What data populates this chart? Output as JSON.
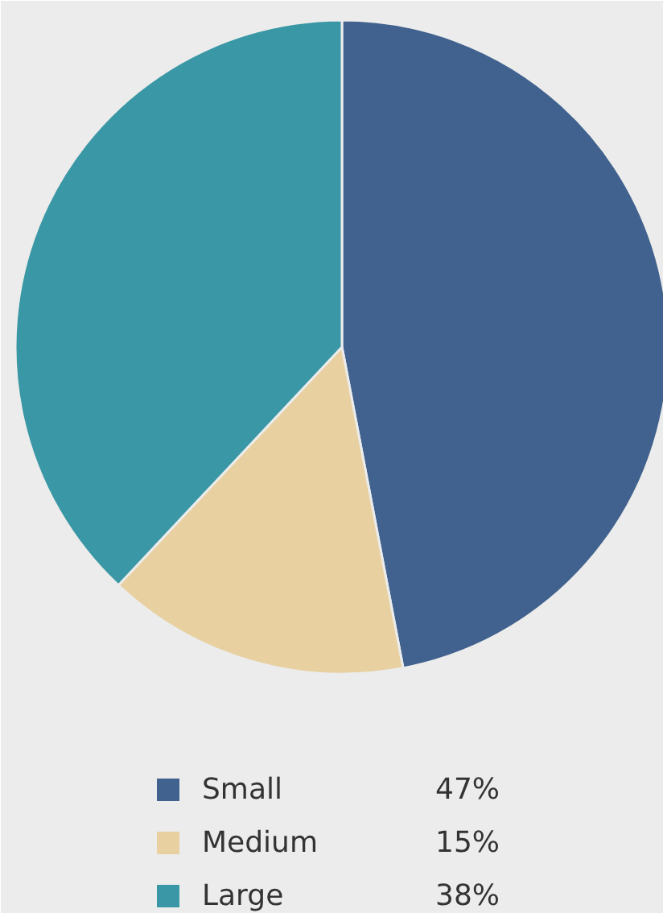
{
  "chart_data": {
    "type": "pie",
    "categories": [
      "Small",
      "Medium",
      "Large"
    ],
    "values": [
      47,
      15,
      38
    ],
    "colors": [
      "#41618e",
      "#e8d0a0",
      "#3a97a5"
    ],
    "value_labels": [
      "47%",
      "15%",
      "38%"
    ],
    "legend": "bottom"
  }
}
